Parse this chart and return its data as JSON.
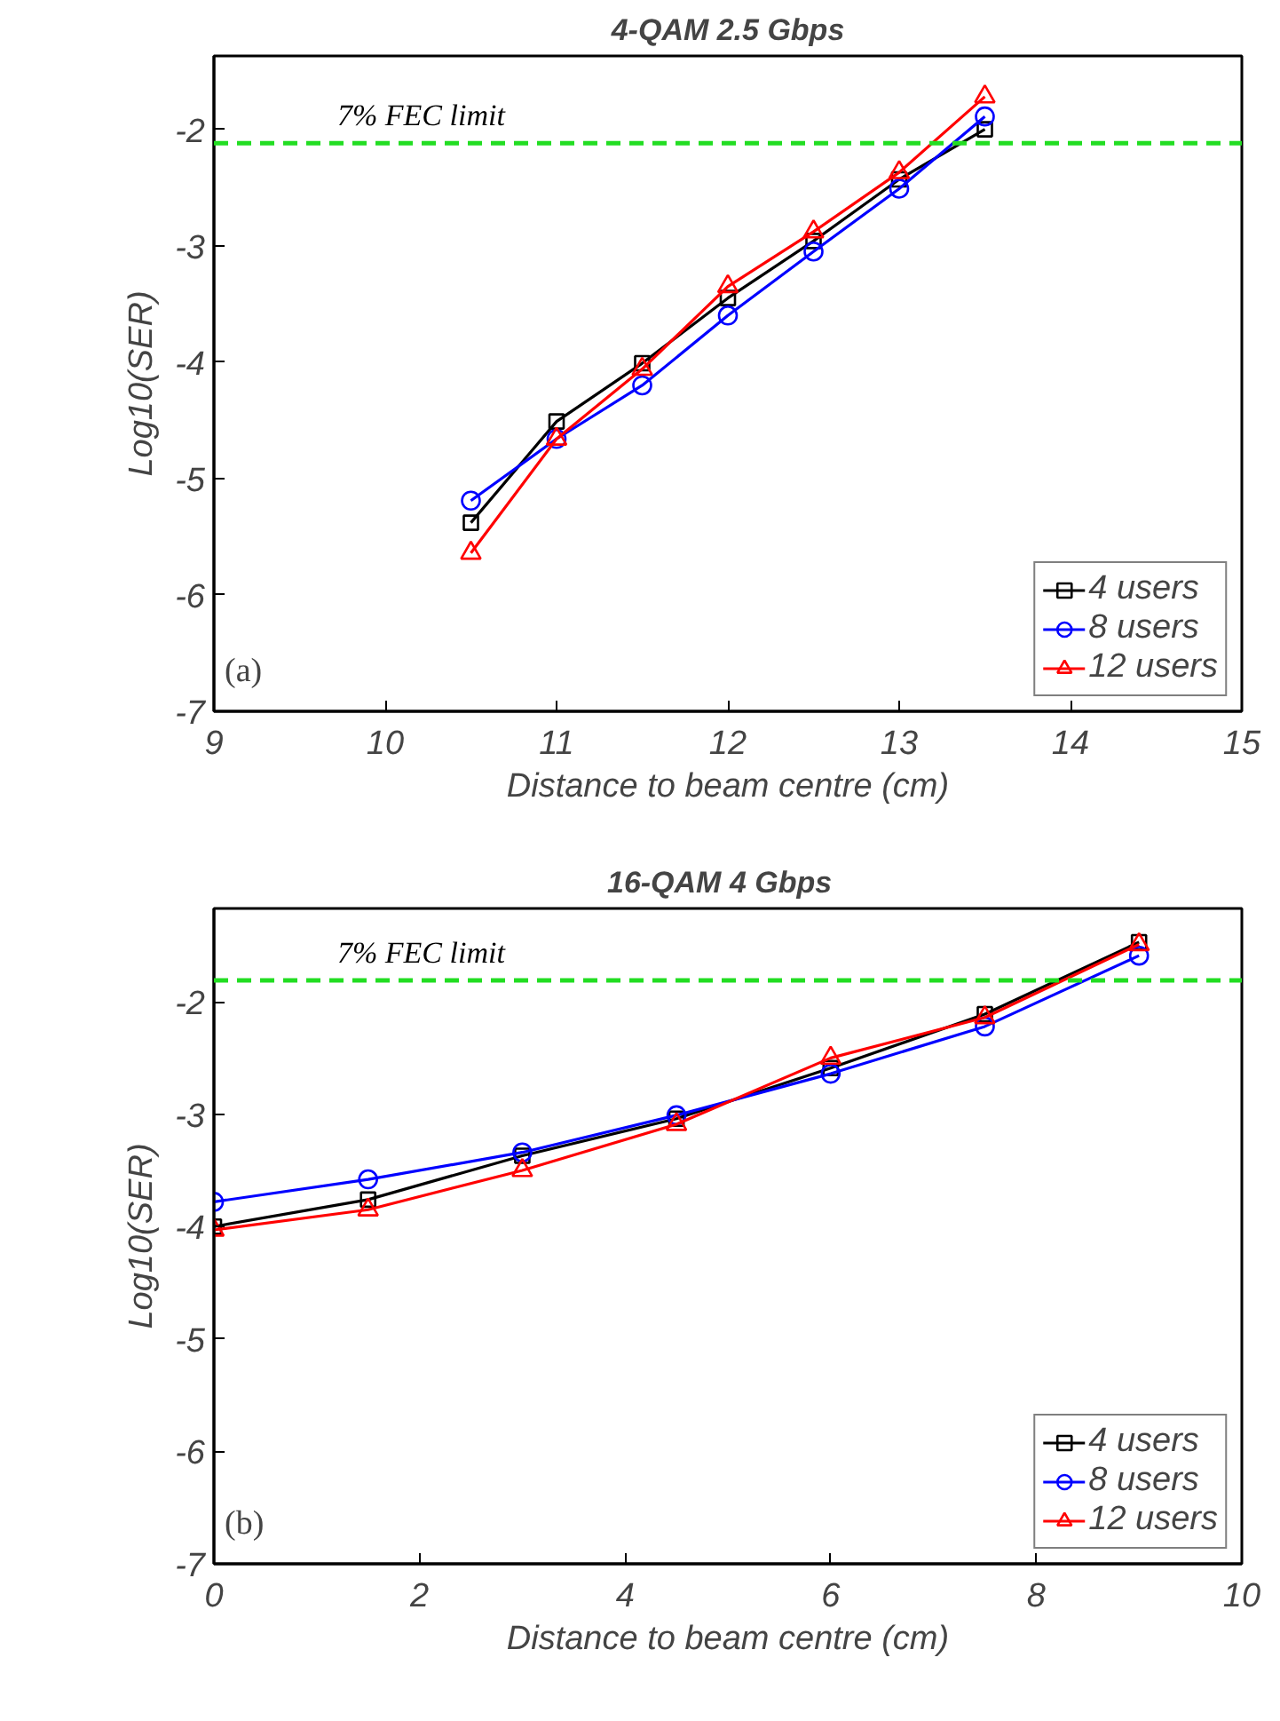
{
  "chart_data": [
    {
      "type": "line",
      "title": "4-QAM 2.5 Gbps",
      "xlabel": "Distance to beam centre (cm)",
      "ylabel": "Log10(SER)",
      "x": [
        10.5,
        11,
        11.5,
        12,
        12.5,
        13,
        13.5
      ],
      "xlim": [
        9,
        15
      ],
      "xticks": [
        9,
        10,
        11,
        12,
        13,
        14,
        15
      ],
      "ylim": [
        -7,
        -1.37
      ],
      "yticks": [
        -2,
        -3,
        -4,
        -5,
        -6,
        -7
      ],
      "grid": false,
      "legend": "bottom right",
      "line_style": "solid",
      "series": [
        {
          "name": "4 users",
          "color": "#000000",
          "marker": "square",
          "values": [
            -5.38,
            -4.51,
            -4.01,
            -3.45,
            -2.96,
            -2.43,
            -2.0
          ]
        },
        {
          "name": "8 users",
          "color": "#0000ff",
          "marker": "circle",
          "values": [
            -5.19,
            -4.66,
            -4.2,
            -3.6,
            -3.05,
            -2.51,
            -1.89
          ]
        },
        {
          "name": "12 users",
          "color": "#ff0000",
          "marker": "triangle",
          "values": [
            -5.64,
            -4.66,
            -4.06,
            -3.35,
            -2.88,
            -2.37,
            -1.72
          ]
        }
      ],
      "ref_lines": [
        {
          "axis": "y",
          "value": -2.12,
          "label": "7% FEC limit",
          "color": "#22dd22",
          "line_style": "dashed"
        }
      ],
      "annotations": [
        "(a)"
      ]
    },
    {
      "type": "line",
      "title": "16-QAM   4 Gbps",
      "xlabel": "Distance to beam centre (cm)",
      "ylabel": "Log10(SER)",
      "x": [
        0,
        1.5,
        3,
        4.5,
        6,
        7.5,
        9
      ],
      "xlim": [
        0,
        10
      ],
      "xticks": [
        0,
        2,
        4,
        6,
        8,
        10
      ],
      "ylim": [
        -7,
        -1.17
      ],
      "yticks": [
        -2,
        -3,
        -4,
        -5,
        -6,
        -7
      ],
      "grid": false,
      "legend": "bottom right",
      "line_style": "solid",
      "series": [
        {
          "name": "4 users",
          "color": "#000000",
          "marker": "square",
          "values": [
            -4.0,
            -3.76,
            -3.37,
            -3.04,
            -2.59,
            -2.11,
            -1.47
          ]
        },
        {
          "name": "8 users",
          "color": "#0000ff",
          "marker": "circle",
          "values": [
            -3.78,
            -3.58,
            -3.34,
            -3.01,
            -2.64,
            -2.22,
            -1.59
          ]
        },
        {
          "name": "12 users",
          "color": "#ff0000",
          "marker": "triangle",
          "values": [
            -4.03,
            -3.85,
            -3.5,
            -3.09,
            -2.5,
            -2.14,
            -1.49
          ]
        }
      ],
      "ref_lines": [
        {
          "axis": "y",
          "value": -1.81,
          "label": "7% FEC limit",
          "color": "#22dd22",
          "line_style": "dashed"
        }
      ],
      "annotations": [
        "(b)"
      ]
    }
  ]
}
